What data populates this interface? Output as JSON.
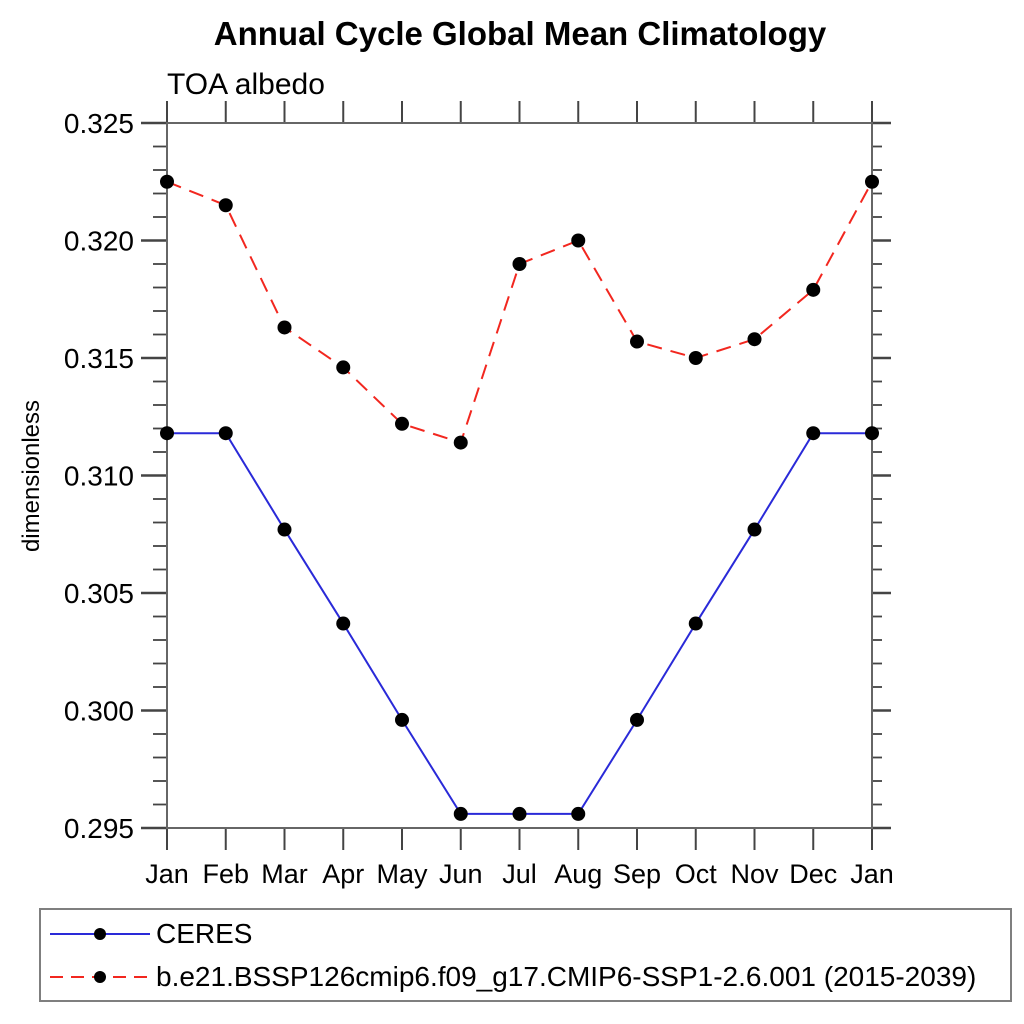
{
  "title": "Annual Cycle Global Mean Climatology",
  "subtitle": "TOA albedo",
  "chart_data": {
    "type": "line",
    "title": "Annual Cycle Global Mean Climatology",
    "subtitle": "TOA albedo",
    "xlabel": "",
    "ylabel": "dimensionless",
    "categories": [
      "Jan",
      "Feb",
      "Mar",
      "Apr",
      "May",
      "Jun",
      "Jul",
      "Aug",
      "Sep",
      "Oct",
      "Nov",
      "Dec",
      "Jan"
    ],
    "ylim": [
      0.295,
      0.325
    ],
    "ytick_labels": [
      "0.295",
      "0.300",
      "0.305",
      "0.310",
      "0.315",
      "0.320",
      "0.325"
    ],
    "ytick_step": 0.005,
    "yminor_step": 0.001,
    "grid": false,
    "legend_position": "bottom-left-box",
    "marker": "filled-circle",
    "marker_color": "#000000",
    "axis_color": "#666666",
    "tick_color": "#444444",
    "series": [
      {
        "name": "CERES",
        "color": "#2a2ad8",
        "style": "solid",
        "values": [
          0.3118,
          0.3118,
          0.3077,
          0.3037,
          0.2996,
          0.2956,
          0.2956,
          0.2956,
          0.2996,
          0.3037,
          0.3077,
          0.3118,
          0.3118
        ]
      },
      {
        "name": "b.e21.BSSP126cmip6.f09_g17.CMIP6-SSP1-2.6.001 (2015-2039)",
        "color": "#f2271f",
        "style": "dashed",
        "values": [
          0.3225,
          0.3215,
          0.3163,
          0.3146,
          0.3122,
          0.3114,
          0.319,
          0.32,
          0.3157,
          0.315,
          0.3158,
          0.3179,
          0.3225
        ]
      }
    ]
  }
}
